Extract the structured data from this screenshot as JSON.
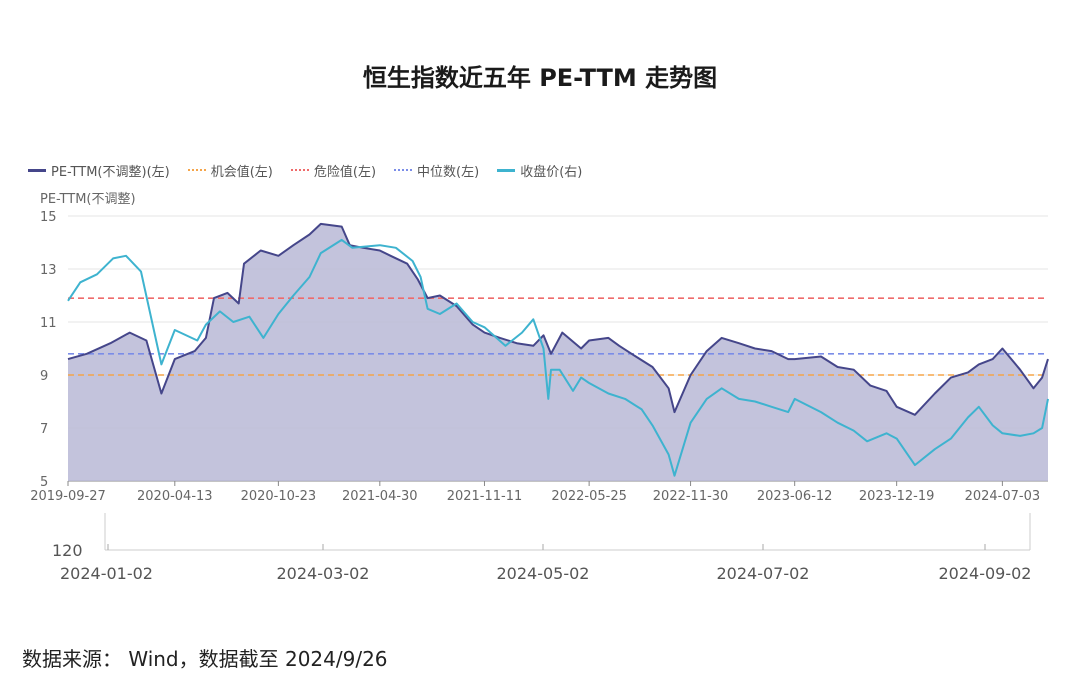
{
  "chart_data": {
    "type": "line",
    "title": "恒生指数近五年 PE-TTM 走势图",
    "ylabel": "PE-TTM(不调整)",
    "ylim": [
      5,
      15
    ],
    "yticks": [
      "15",
      "13",
      "11",
      "9",
      "7",
      "5"
    ],
    "xtick_labels": [
      "2019-09-27",
      "2020-04-13",
      "2020-10-23",
      "2021-04-30",
      "2021-11-11",
      "2022-05-25",
      "2022-11-30",
      "2023-06-12",
      "2023-12-19",
      "2024-07-03"
    ],
    "legend_position": "top-left",
    "grid": true,
    "series": [
      {
        "name": "PE-TTM(不调整)(左)",
        "color": "#45468a",
        "style": "solid-area",
        "dates": [
          "2019-09-27",
          "2019-11-01",
          "2019-12-15",
          "2020-01-20",
          "2020-02-20",
          "2020-03-19",
          "2020-04-13",
          "2020-05-20",
          "2020-06-10",
          "2020-06-25",
          "2020-07-20",
          "2020-08-10",
          "2020-08-20",
          "2020-09-20",
          "2020-10-23",
          "2020-11-20",
          "2020-12-20",
          "2021-01-10",
          "2021-02-18",
          "2021-03-05",
          "2021-03-30",
          "2021-04-30",
          "2021-05-20",
          "2021-06-20",
          "2021-07-10",
          "2021-07-28",
          "2021-08-20",
          "2021-09-20",
          "2021-10-20",
          "2021-11-11",
          "2021-12-10",
          "2022-01-10",
          "2022-02-10",
          "2022-03-01",
          "2022-03-15",
          "2022-04-05",
          "2022-05-10",
          "2022-05-25",
          "2022-06-30",
          "2022-07-20",
          "2022-08-20",
          "2022-09-20",
          "2022-10-20",
          "2022-10-31",
          "2022-11-30",
          "2022-12-30",
          "2023-01-27",
          "2023-02-28",
          "2023-03-30",
          "2023-04-30",
          "2023-05-31",
          "2023-06-12",
          "2023-07-31",
          "2023-08-31",
          "2023-09-30",
          "2023-10-31",
          "2023-11-30",
          "2023-12-19",
          "2024-01-22",
          "2024-02-28",
          "2024-03-29",
          "2024-04-30",
          "2024-05-20",
          "2024-06-15",
          "2024-07-03",
          "2024-08-05",
          "2024-08-30",
          "2024-09-15",
          "2024-09-26"
        ],
        "values": [
          9.6,
          9.8,
          10.2,
          10.6,
          10.3,
          8.3,
          9.6,
          9.9,
          10.4,
          11.9,
          12.1,
          11.7,
          13.2,
          13.7,
          13.5,
          13.9,
          14.3,
          14.7,
          14.6,
          13.9,
          13.8,
          13.7,
          13.5,
          13.2,
          12.6,
          11.9,
          12.0,
          11.6,
          10.9,
          10.6,
          10.4,
          10.2,
          10.1,
          10.5,
          9.8,
          10.6,
          10.0,
          10.3,
          10.4,
          10.1,
          9.7,
          9.3,
          8.5,
          7.6,
          9.0,
          9.9,
          10.4,
          10.2,
          10.0,
          9.9,
          9.6,
          9.6,
          9.7,
          9.3,
          9.2,
          8.6,
          8.4,
          7.8,
          7.5,
          8.3,
          8.9,
          9.1,
          9.4,
          9.6,
          10.0,
          9.2,
          8.5,
          8.9,
          9.6
        ]
      },
      {
        "name": "机会值(左)",
        "color": "#f5a54a",
        "style": "dashed",
        "values": [
          9.0
        ]
      },
      {
        "name": "危险值(左)",
        "color": "#ef6b6b",
        "style": "dashed",
        "values": [
          11.9
        ]
      },
      {
        "name": "中位数(左)",
        "color": "#7b8de8",
        "style": "dashed",
        "values": [
          9.8
        ]
      },
      {
        "name": "收盘价(右)",
        "color": "#3eb3cf",
        "style": "solid",
        "dates": [
          "2019-09-27",
          "2019-10-20",
          "2019-11-20",
          "2019-12-20",
          "2020-01-13",
          "2020-02-10",
          "2020-03-19",
          "2020-04-13",
          "2020-05-25",
          "2020-06-10",
          "2020-07-06",
          "2020-07-31",
          "2020-08-30",
          "2020-09-25",
          "2020-10-23",
          "2020-11-20",
          "2020-12-20",
          "2021-01-10",
          "2021-02-18",
          "2021-03-10",
          "2021-04-30",
          "2021-05-30",
          "2021-06-30",
          "2021-07-15",
          "2021-07-28",
          "2021-08-20",
          "2021-09-20",
          "2021-10-20",
          "2021-11-11",
          "2021-12-20",
          "2022-01-20",
          "2022-02-10",
          "2022-03-01",
          "2022-03-10",
          "2022-03-15",
          "2022-03-31",
          "2022-04-25",
          "2022-05-10",
          "2022-05-25",
          "2022-06-30",
          "2022-07-31",
          "2022-08-31",
          "2022-09-20",
          "2022-10-20",
          "2022-10-31",
          "2022-11-30",
          "2022-12-30",
          "2023-01-27",
          "2023-02-28",
          "2023-03-30",
          "2023-04-30",
          "2023-05-31",
          "2023-06-12",
          "2023-07-31",
          "2023-08-31",
          "2023-09-30",
          "2023-10-25",
          "2023-11-30",
          "2023-12-19",
          "2024-01-22",
          "2024-02-28",
          "2024-03-29",
          "2024-04-30",
          "2024-05-20",
          "2024-06-15",
          "2024-07-03",
          "2024-08-05",
          "2024-08-30",
          "2024-09-15",
          "2024-09-26"
        ],
        "values": [
          11.8,
          12.5,
          12.8,
          13.4,
          13.5,
          12.9,
          9.4,
          10.7,
          10.3,
          10.9,
          11.4,
          11.0,
          11.2,
          10.4,
          11.3,
          12.0,
          12.7,
          13.6,
          14.1,
          13.8,
          13.9,
          13.8,
          13.3,
          12.7,
          11.5,
          11.3,
          11.7,
          11.0,
          10.8,
          10.1,
          10.6,
          11.1,
          10.0,
          8.1,
          9.2,
          9.2,
          8.4,
          8.9,
          8.7,
          8.3,
          8.1,
          7.7,
          7.1,
          6.0,
          5.2,
          7.2,
          8.1,
          8.5,
          8.1,
          8.0,
          7.8,
          7.6,
          8.1,
          7.6,
          7.2,
          6.9,
          6.5,
          6.8,
          6.6,
          5.6,
          6.2,
          6.6,
          7.4,
          7.8,
          7.1,
          6.8,
          6.7,
          6.8,
          7.0,
          8.1
        ]
      }
    ]
  },
  "navigator": {
    "ytick": "120",
    "xtick_labels": [
      "2024-01-02",
      "2024-03-02",
      "2024-05-02",
      "2024-07-02",
      "2024-09-02"
    ]
  },
  "source_note": "数据来源：  Wind，数据截至 2024/9/26"
}
